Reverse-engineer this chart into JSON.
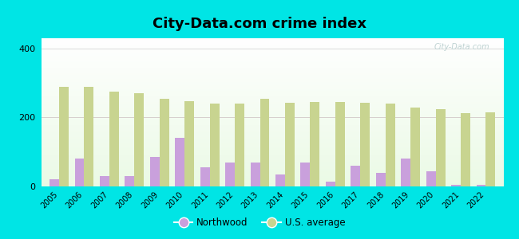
{
  "title": "City-Data.com crime index",
  "years": [
    2005,
    2006,
    2007,
    2008,
    2009,
    2010,
    2011,
    2012,
    2013,
    2014,
    2015,
    2016,
    2017,
    2018,
    2019,
    2020,
    2021,
    2022
  ],
  "northwood": [
    20,
    80,
    30,
    30,
    85,
    140,
    55,
    70,
    70,
    35,
    70,
    15,
    60,
    40,
    80,
    45,
    5,
    5
  ],
  "us_average": [
    290,
    290,
    275,
    270,
    255,
    248,
    240,
    240,
    255,
    243,
    244,
    244,
    243,
    240,
    228,
    225,
    213,
    215
  ],
  "northwood_color": "#c9a0dc",
  "us_average_color": "#c8d490",
  "background_outer": "#00e5e5",
  "ylim": [
    0,
    430
  ],
  "yticks": [
    0,
    200,
    400
  ],
  "title_fontsize": 13,
  "bar_width": 0.38,
  "watermark_text": "City-Data.com",
  "legend_northwood": "Northwood",
  "legend_us": "U.S. average",
  "grid_color": "#dddddd",
  "highlight_color": "#ffcccc"
}
